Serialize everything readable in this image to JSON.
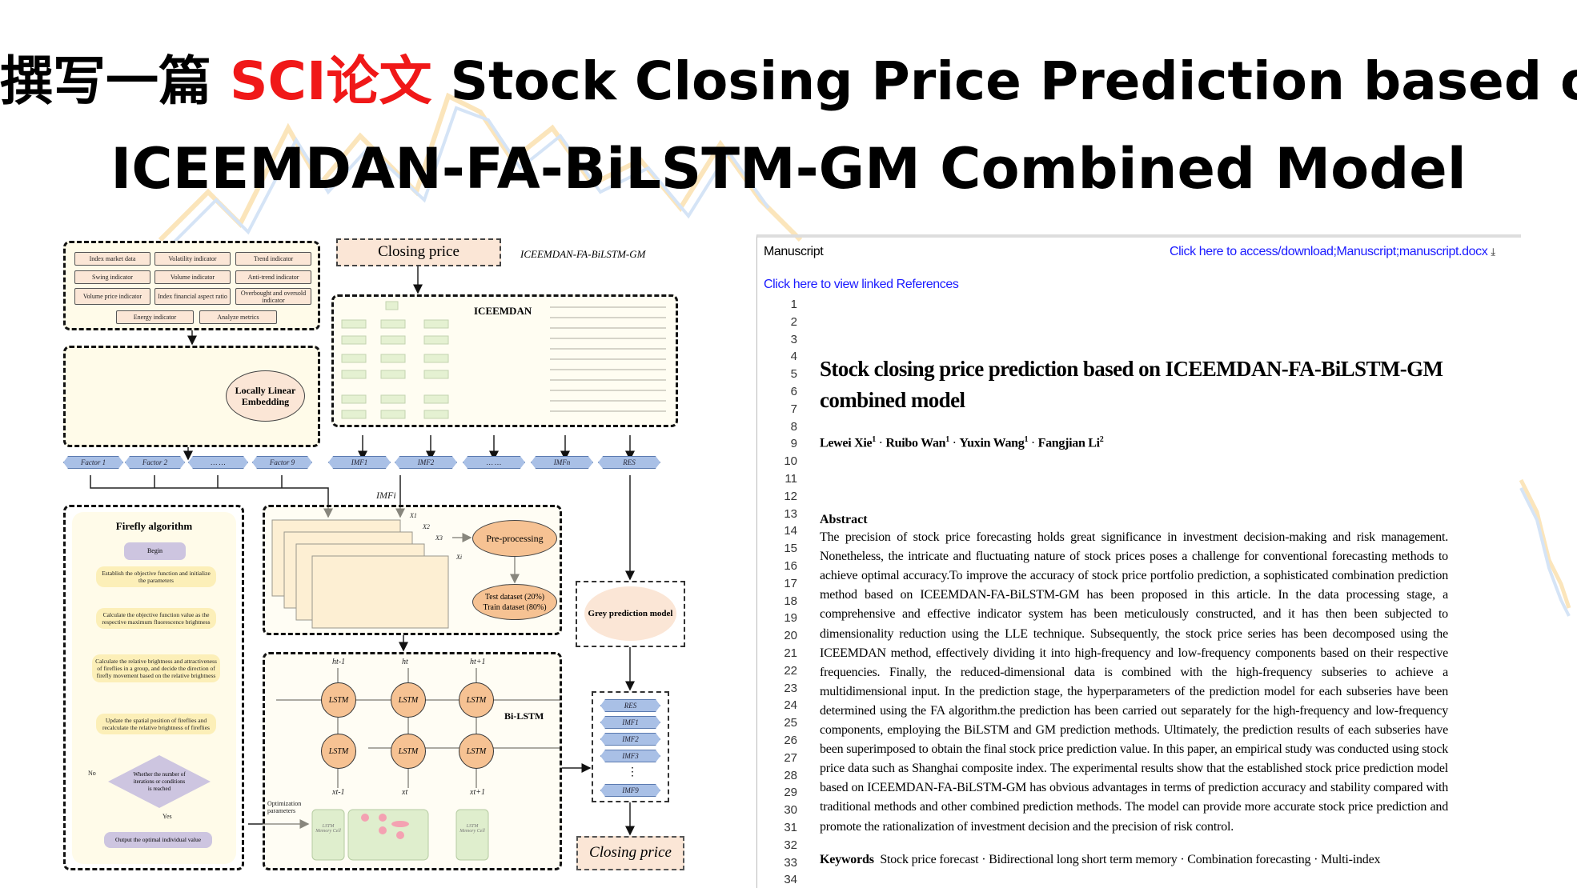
{
  "headline": {
    "line1_prefix": "撰写一篇 ",
    "line1_highlight": "SCI论文",
    "line1_suffix": " Stock Closing Price Prediction based on",
    "line2": "ICEEMDAN-FA-BiLSTM-GM Combined Model",
    "highlight_color": "#f01818"
  },
  "diagram": {
    "indicators": [
      "Index market data",
      "Volatility indicator",
      "Trend indicator",
      "Swing indicator",
      "Volume indicator",
      "Anti-trend indicator",
      "Volume price indicator",
      "Index financial aspect ratio",
      "Overbought and oversold indicator",
      "Energy indicator",
      "Analyze metrics"
    ],
    "lle_label": "Locally Linear Embedding",
    "factors": [
      "Factor 1",
      "Factor 2",
      "… …",
      "Factor 9"
    ],
    "closing_price": "Closing price",
    "model_name": "ICEEMDAN-FA-BiLSTM-GM",
    "iceemdan_label": "ICEEMDAN",
    "imfs": [
      "IMF1",
      "IMF2",
      "… …",
      "IMFn",
      "RES"
    ],
    "imf_i": "IMFi",
    "x_labels": [
      "X1",
      "X2",
      "X3",
      "Xi"
    ],
    "preprocessing": "Pre-processing",
    "test_dataset": "Test dataset (20%)",
    "train_dataset": "Train dataset (80%)",
    "firefly": {
      "title": "Firefly algorithm",
      "begin": "Begin",
      "steps": [
        "Establish the objective function and initialize the parameters",
        "Calculate the objective function value as the respective maximum fluorescence brightness",
        "Calculate the relative brightness and attractiveness of fireflies in a group, and decide the direction of firefly movement based on the relative brightness",
        "Update the spatial position of fireflies and recalculate the relative brightness of fireflies"
      ],
      "decision": "Whether the number of iterations or conditions is reached",
      "no": "No",
      "yes": "Yes",
      "output": "Output the optimal individual value"
    },
    "grey_model": "Grey prediction model",
    "bilstm_label": "Bi-LSTM",
    "lstm": "LSTM",
    "h_top": [
      "ht-1",
      "ht",
      "ht+1"
    ],
    "x_bottom": [
      "xt-1",
      "xt",
      "xt+1"
    ],
    "optimization": "Optimization parameters",
    "memory_cell": "LSTM Memory Cell",
    "outputs": [
      "RES",
      "IMF1",
      "IMF2",
      "IMF3",
      "⋮",
      "IMF9"
    ],
    "final": "Closing price"
  },
  "manuscript": {
    "label": "Manuscript",
    "download_link": "Click here to access/download;Manuscript;manuscript.docx",
    "download_icon": "download-icon",
    "references_link": "Click here to view linked References",
    "line_numbers": [
      "1",
      "2",
      "3",
      "4",
      "5",
      "6",
      "7",
      "8",
      "9",
      "10",
      "11",
      "12",
      "13",
      "14",
      "15",
      "16",
      "17",
      "18",
      "19",
      "20",
      "21",
      "22",
      "23",
      "24",
      "25",
      "26",
      "27",
      "28",
      "29",
      "30",
      "31",
      "32",
      "33",
      "34"
    ],
    "title_line1": "Stock closing price prediction based on ICEEMDAN-FA-BiLSTM-GM",
    "title_line2": "combined model",
    "authors": [
      {
        "name": "Lewei Xie",
        "sup": "1"
      },
      {
        "name": "Ruibo Wan",
        "sup": "1"
      },
      {
        "name": "Yuxin Wang",
        "sup": "1"
      },
      {
        "name": "Fangjian Li",
        "sup": "2"
      }
    ],
    "abstract_heading": "Abstract",
    "abstract_lines": [
      "The precision of stock price forecasting holds great significance in investment decision-making and risk management.",
      "Nonetheless, the intricate and fluctuating nature of stock prices poses a challenge for conventional forecasting methods to",
      "achieve optimal accuracy.To improve the accuracy of stock price portfolio prediction, a sophisticated combination prediction",
      "method based on ICEEMDAN-FA-BiLSTM-GM has been proposed in this article. In the data processing stage, a",
      "comprehensive and effective indicator system has been meticulously constructed, and it has then been subjected to",
      "dimensionality reduction using the LLE technique. Subsequently, the stock price series has been decomposed using the",
      "ICEEMDAN method, effectively dividing it into high-frequency and low-frequency components based on their respective",
      "frequencies. Finally, the reduced-dimensional data is combined with the high-frequency subseries to achieve a",
      "multidimensional input. In the prediction stage, the hyperparameters of the prediction model for each subseries have been",
      "determined using the FA algorithm.the prediction has been carried out separately for the high-frequency and low-frequency",
      "components, employing the BiLSTM and GM prediction methods. Ultimately, the prediction results of each subseries have",
      "been superimposed to obtain the final stock price prediction value. In this paper, an empirical study was conducted using stock",
      "price data such as Shanghai composite index. The experimental results show that the established stock price prediction model",
      "based on ICEEMDAN-FA-BiLSTM-GM has obvious advantages in terms of prediction accuracy and stability compared with",
      "traditional methods and other combined prediction methods. The model can provide more accurate stock price prediction and",
      "promote the rationalization of investment decision and the precision of risk control."
    ],
    "keywords_label": "Keywords",
    "keywords": "Stock price forecast · Bidirectional long short term memory · Combination forecasting · Multi-index",
    "link_color": "#1a1aff"
  }
}
